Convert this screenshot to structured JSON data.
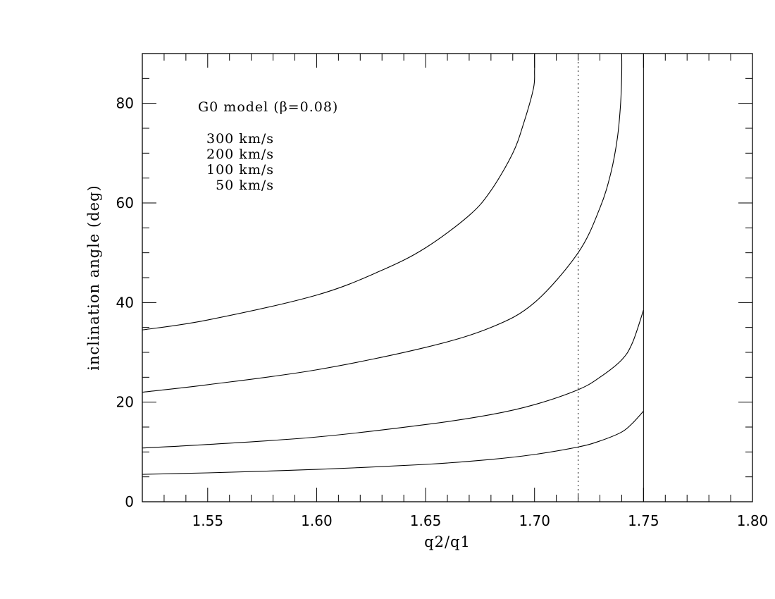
{
  "chart_data": {
    "type": "line",
    "title": "",
    "xlabel": "q2/q1",
    "ylabel": "inclination angle (deg)",
    "xlim": [
      1.52,
      1.8
    ],
    "ylim": [
      0,
      90
    ],
    "x_ticks": [
      1.55,
      1.6,
      1.65,
      1.7,
      1.75,
      1.8
    ],
    "x_tick_labels": [
      "1.55",
      "1.60",
      "1.65",
      "1.70",
      "1.75",
      "1.80"
    ],
    "y_ticks": [
      0,
      20,
      40,
      60,
      80
    ],
    "y_tick_labels": [
      "0",
      "20",
      "40",
      "60",
      "80"
    ],
    "x_minor_step": 0.01,
    "y_minor_step": 5,
    "grid": false,
    "annotation_title": "G0 model (β=0.08)",
    "legend_lines": [
      "300 km/s",
      "200 km/s",
      "100 km/s",
      "50 km/s"
    ],
    "reference_lines": [
      {
        "x": 1.72,
        "style": "dotted"
      },
      {
        "x": 1.75,
        "style": "solid"
      }
    ],
    "series": [
      {
        "x": [
          1.52,
          1.55,
          1.6,
          1.63,
          1.65,
          1.67,
          1.68,
          1.69,
          1.695,
          1.6995,
          1.7,
          1.7,
          1.7
        ],
        "y": [
          34.5,
          36.5,
          41.5,
          46.5,
          51.0,
          57.5,
          62.5,
          70.0,
          76.0,
          83.0,
          86.5,
          88.5,
          90
        ]
      },
      {
        "x": [
          1.52,
          1.55,
          1.6,
          1.65,
          1.68,
          1.7,
          1.72,
          1.73,
          1.735,
          1.738,
          1.7395,
          1.74,
          1.74
        ],
        "y": [
          22.0,
          23.5,
          26.5,
          31.0,
          35.0,
          40.0,
          50.0,
          59.0,
          66.0,
          73.0,
          80.0,
          86.0,
          90
        ]
      },
      {
        "x": [
          1.52,
          1.55,
          1.6,
          1.65,
          1.68,
          1.7,
          1.72,
          1.73,
          1.74,
          1.745,
          1.75
        ],
        "y": [
          10.8,
          11.5,
          13.0,
          15.5,
          17.5,
          19.5,
          22.5,
          25.0,
          28.5,
          32.0,
          38.5
        ]
      },
      {
        "x": [
          1.52,
          1.55,
          1.6,
          1.65,
          1.68,
          1.7,
          1.72,
          1.73,
          1.74,
          1.745,
          1.75
        ],
        "y": [
          5.5,
          5.8,
          6.5,
          7.5,
          8.5,
          9.5,
          11.0,
          12.2,
          14.0,
          15.8,
          18.2
        ]
      }
    ]
  }
}
